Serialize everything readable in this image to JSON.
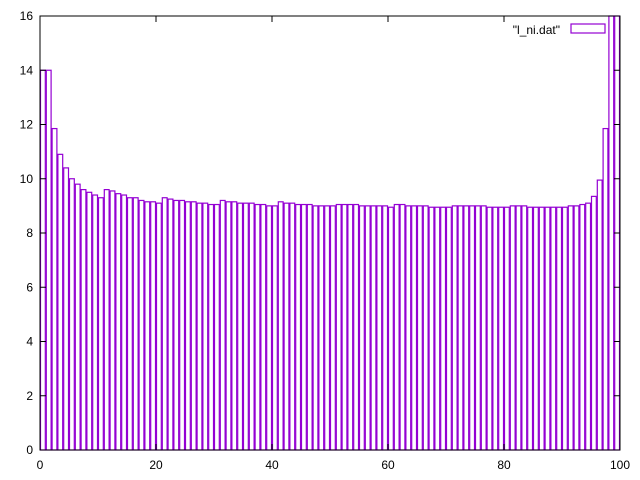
{
  "chart_data": {
    "type": "bar",
    "style": "histogram-steps-unfilled",
    "xlim": [
      0,
      100
    ],
    "ylim": [
      0,
      16
    ],
    "xticks": [
      0,
      20,
      40,
      60,
      80,
      100
    ],
    "yticks": [
      0,
      2,
      4,
      6,
      8,
      10,
      12,
      14,
      16
    ],
    "grid": false,
    "legend_position": "top-right",
    "bar_color": "#9400d3",
    "series": [
      {
        "name": "\"l_ni.dat\"",
        "x": [
          0,
          1,
          2,
          3,
          4,
          5,
          6,
          7,
          8,
          9,
          10,
          11,
          12,
          13,
          14,
          15,
          16,
          17,
          18,
          19,
          20,
          21,
          22,
          23,
          24,
          25,
          26,
          27,
          28,
          29,
          30,
          31,
          32,
          33,
          34,
          35,
          36,
          37,
          38,
          39,
          40,
          41,
          42,
          43,
          44,
          45,
          46,
          47,
          48,
          49,
          50,
          51,
          52,
          53,
          54,
          55,
          56,
          57,
          58,
          59,
          60,
          61,
          62,
          63,
          64,
          65,
          66,
          67,
          68,
          69,
          70,
          71,
          72,
          73,
          74,
          75,
          76,
          77,
          78,
          79,
          80,
          81,
          82,
          83,
          84,
          85,
          86,
          87,
          88,
          89,
          90,
          91,
          92,
          93,
          94,
          95,
          96,
          97,
          98,
          99
        ],
        "values": [
          14.0,
          14.0,
          11.85,
          10.9,
          10.4,
          10.0,
          9.8,
          9.6,
          9.5,
          9.4,
          9.3,
          9.6,
          9.55,
          9.45,
          9.4,
          9.3,
          9.3,
          9.2,
          9.15,
          9.15,
          9.1,
          9.3,
          9.25,
          9.2,
          9.2,
          9.15,
          9.15,
          9.1,
          9.1,
          9.05,
          9.05,
          9.2,
          9.15,
          9.15,
          9.1,
          9.1,
          9.1,
          9.05,
          9.05,
          9.0,
          9.0,
          9.15,
          9.1,
          9.1,
          9.05,
          9.05,
          9.05,
          9.0,
          9.0,
          9.0,
          9.0,
          9.05,
          9.05,
          9.05,
          9.05,
          9.0,
          9.0,
          9.0,
          9.0,
          9.0,
          8.95,
          9.05,
          9.05,
          9.0,
          9.0,
          9.0,
          9.0,
          8.95,
          8.95,
          8.95,
          8.95,
          9.0,
          9.0,
          9.0,
          9.0,
          9.0,
          9.0,
          8.95,
          8.95,
          8.95,
          8.95,
          9.0,
          9.0,
          9.0,
          8.95,
          8.95,
          8.95,
          8.95,
          8.95,
          8.95,
          8.95,
          9.0,
          9.0,
          9.05,
          9.1,
          9.35,
          9.95,
          11.85,
          16.0,
          16.0
        ]
      }
    ]
  }
}
